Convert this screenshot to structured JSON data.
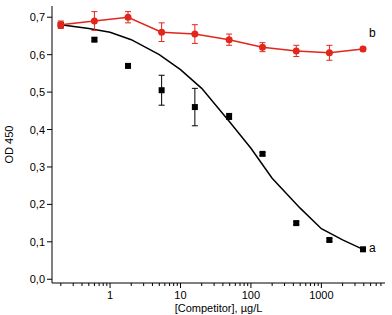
{
  "chart_data": {
    "type": "scatter",
    "x_label": "[Competitor], µg/L",
    "y_label": "OD 450",
    "log": "x",
    "grid": false,
    "xlim": [
      0.15,
      8000
    ],
    "ylim": [
      -0.01,
      0.73
    ],
    "xticks": [
      1,
      10,
      100,
      1000
    ],
    "yticks": [
      {
        "value": 0,
        "label": "0,0"
      },
      {
        "value": 0.1,
        "label": "0,1"
      },
      {
        "value": 0.2,
        "label": "0,2"
      },
      {
        "value": 0.3,
        "label": "0,3"
      },
      {
        "value": 0.4,
        "label": "0,4"
      },
      {
        "value": 0.5,
        "label": "0,5"
      },
      {
        "value": 0.6,
        "label": "0,6"
      },
      {
        "value": 0.7,
        "label": "0,7"
      }
    ],
    "series": [
      {
        "name": "a",
        "type": "scatter",
        "color": "#000000",
        "marker": "square",
        "x": [
          0.2,
          0.6,
          1.8,
          5.4,
          16,
          49,
          146,
          440,
          1300,
          3900
        ],
        "values": [
          0.68,
          0.64,
          0.57,
          0.505,
          0.46,
          0.435,
          0.335,
          0.15,
          0.105,
          0.08
        ],
        "errors": [
          0.005,
          0.004,
          0.005,
          0.04,
          0.05,
          0.008,
          0.004,
          0.004,
          0.004,
          0.005
        ]
      },
      {
        "type": "line",
        "color": "#000000",
        "line_style": "solid",
        "x": [
          0.2,
          0.5,
          1,
          2,
          5,
          10,
          20,
          50,
          100,
          200,
          500,
          1000,
          2000,
          3900
        ],
        "values": [
          0.68,
          0.67,
          0.66,
          0.64,
          0.6,
          0.56,
          0.51,
          0.42,
          0.35,
          0.27,
          0.19,
          0.135,
          0.105,
          0.08
        ]
      },
      {
        "name": "b",
        "type": "line",
        "color": "#e3261b",
        "marker": "circle",
        "line_style": "solid",
        "x": [
          0.2,
          0.6,
          1.8,
          5.4,
          16,
          49,
          146,
          440,
          1300,
          3900
        ],
        "values": [
          0.68,
          0.69,
          0.7,
          0.66,
          0.655,
          0.64,
          0.62,
          0.61,
          0.605,
          0.615
        ],
        "errors": [
          0.01,
          0.025,
          0.015,
          0.025,
          0.025,
          0.015,
          0.012,
          0.015,
          0.02,
          0.005
        ]
      }
    ]
  }
}
